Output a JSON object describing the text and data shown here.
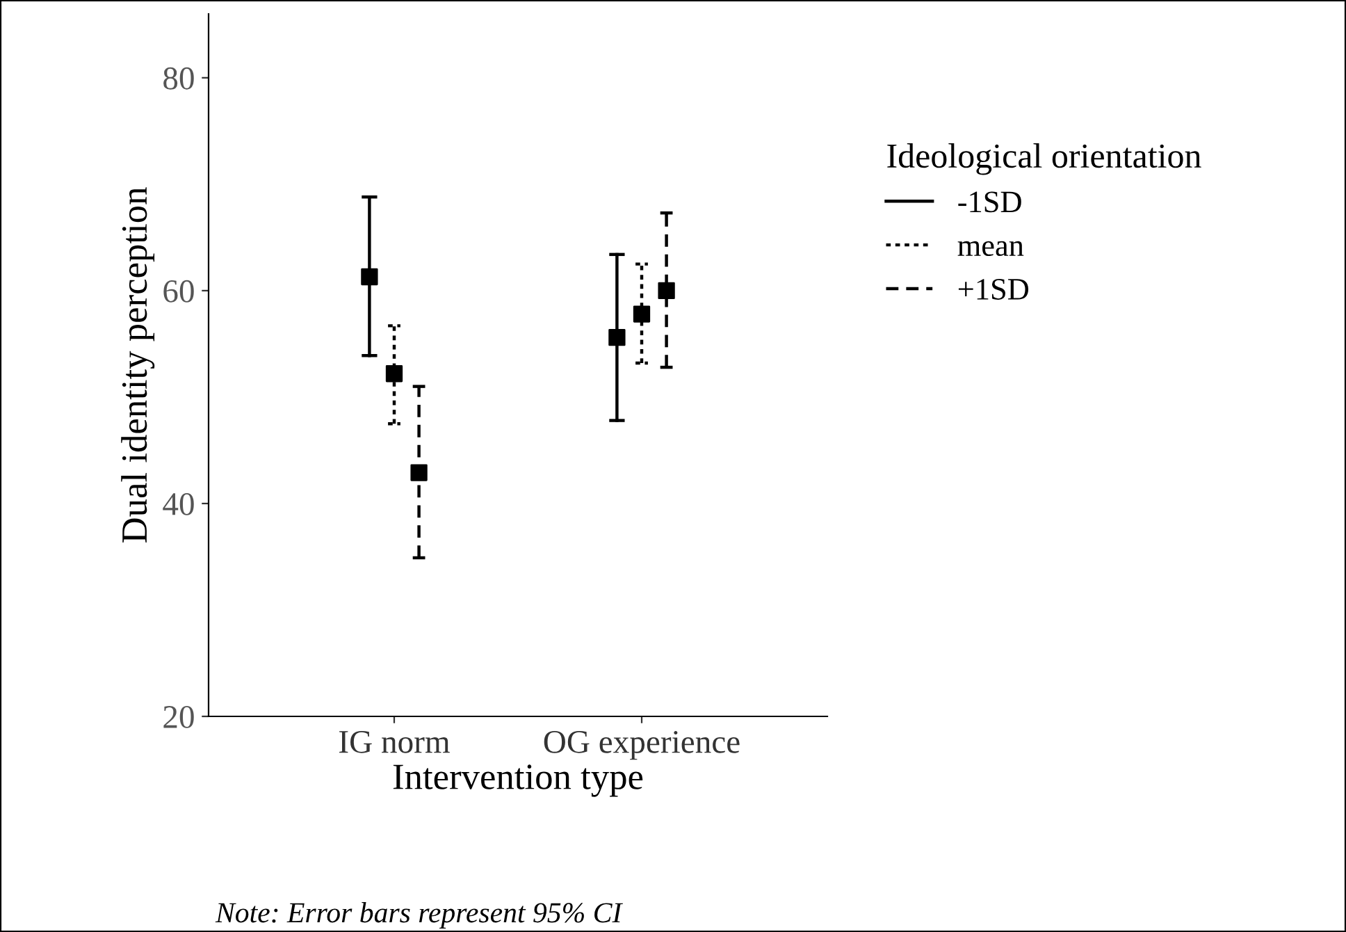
{
  "chart_data": {
    "type": "scatter",
    "xlabel": "Intervention type",
    "ylabel": "Dual identity perception",
    "legend_title": "Ideological orientation",
    "categories": [
      "IG norm",
      "OG experience"
    ],
    "series": [
      {
        "name": "-1SD",
        "color": "#000000",
        "line_style": "solid",
        "values": [
          61.3,
          55.6
        ],
        "errors": [
          [
            53.9,
            68.8
          ],
          [
            47.8,
            63.4
          ]
        ]
      },
      {
        "name": "mean",
        "color": "#000000",
        "line_style": "dotted",
        "values": [
          52.2,
          57.8
        ],
        "errors": [
          [
            47.5,
            56.7
          ],
          [
            53.2,
            62.5
          ]
        ]
      },
      {
        "name": "+1SD",
        "color": "#000000",
        "line_style": "dashed",
        "values": [
          42.9,
          60.0
        ],
        "errors": [
          [
            34.9,
            51.0
          ],
          [
            52.8,
            67.3
          ]
        ]
      }
    ],
    "ylim": [
      20,
      86
    ],
    "yticks": [
      20,
      40,
      60,
      80
    ],
    "grid": false,
    "legend": "right",
    "marker": "square",
    "annotations": [
      "Note: Error bars represent 95% CI"
    ]
  }
}
